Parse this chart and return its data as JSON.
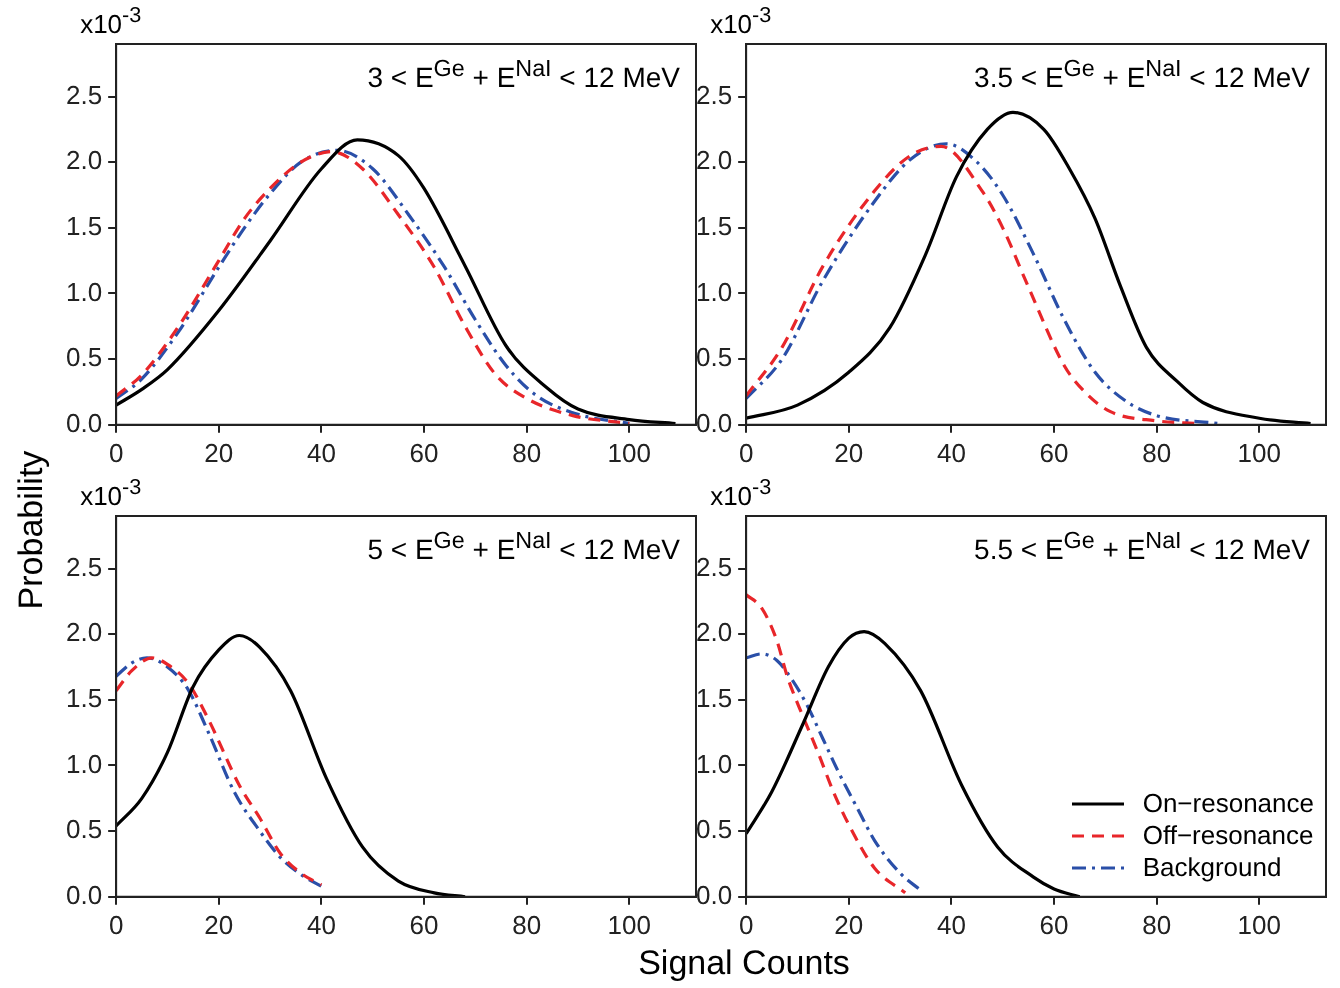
{
  "chart_data": [
    {
      "type": "line",
      "title": "3 < E$^{Ge}$ + E$^{NaI}$ < 12 MeV",
      "ylabel": "Probability",
      "annotations": [
        "x10$^{-3}$"
      ],
      "xlim": [
        0,
        113
      ],
      "ylim": [
        0,
        2.9
      ],
      "xticks": [
        0,
        20,
        40,
        60,
        80,
        100
      ],
      "yticks": [
        {
          "value": 0,
          "label": "0.0"
        },
        0.5,
        {
          "value": 1,
          "label": "1.0"
        },
        1.5,
        {
          "value": 2,
          "label": "2.0"
        },
        2.5
      ],
      "grid": false,
      "legend": false,
      "marker": "none",
      "series": [
        {
          "color": "#000000",
          "line_style": "solid",
          "x": [
            0,
            5,
            10,
            20,
            30,
            40,
            47,
            55,
            60,
            68,
            76,
            84,
            90,
            100,
            109
          ],
          "values": [
            0.15,
            0.27,
            0.42,
            0.87,
            1.4,
            1.95,
            2.17,
            2.05,
            1.8,
            1.21,
            0.6,
            0.28,
            0.12,
            0.04,
            0.01
          ]
        },
        {
          "color": "#e8262a",
          "line_style": "dashed",
          "x": [
            0,
            5,
            12,
            20,
            25,
            30,
            36,
            42,
            48,
            55,
            62,
            68,
            74,
            80,
            89,
            100
          ],
          "values": [
            0.22,
            0.38,
            0.74,
            1.25,
            1.57,
            1.8,
            2.0,
            2.08,
            1.95,
            1.6,
            1.2,
            0.75,
            0.38,
            0.2,
            0.07,
            0.01
          ]
        },
        {
          "color": "#2a4fa8",
          "line_style": "dotted",
          "x": [
            0,
            5,
            12,
            20,
            25,
            30,
            36,
            43,
            50,
            57,
            64,
            70,
            76,
            82,
            90,
            100
          ],
          "values": [
            0.2,
            0.35,
            0.7,
            1.2,
            1.5,
            1.76,
            2.0,
            2.09,
            1.95,
            1.6,
            1.2,
            0.8,
            0.45,
            0.22,
            0.08,
            0.01
          ]
        }
      ]
    },
    {
      "type": "line",
      "title": "3.5 < E$^{Ge}$ + E$^{NaI}$ < 12 MeV",
      "annotations": [
        "x10$^{-3}$"
      ],
      "xlim": [
        0,
        113
      ],
      "ylim": [
        0,
        2.9
      ],
      "xticks": [
        0,
        20,
        40,
        60,
        80,
        100
      ],
      "yticks": [
        {
          "value": 0,
          "label": "0.0"
        },
        0.5,
        {
          "value": 1,
          "label": "1.0"
        },
        1.5,
        {
          "value": 2,
          "label": "2.0"
        },
        2.5
      ],
      "grid": false,
      "legend": false,
      "marker": "none",
      "series": [
        {
          "color": "#000000",
          "line_style": "solid",
          "x": [
            0,
            10,
            20,
            28,
            35,
            41,
            47,
            52,
            58,
            63,
            68,
            73,
            78,
            84,
            89,
            100,
            110
          ],
          "values": [
            0.05,
            0.15,
            0.4,
            0.74,
            1.3,
            1.89,
            2.25,
            2.38,
            2.25,
            1.95,
            1.57,
            1.05,
            0.59,
            0.33,
            0.17,
            0.05,
            0.01
          ]
        },
        {
          "color": "#e8262a",
          "line_style": "dashed",
          "x": [
            0,
            7,
            15,
            25,
            32,
            38,
            46,
            50,
            55,
            62,
            66,
            71,
            80,
            88
          ],
          "values": [
            0.22,
            0.59,
            1.21,
            1.78,
            2.05,
            2.12,
            1.78,
            1.5,
            1.05,
            0.45,
            0.25,
            0.1,
            0.03,
            0.01
          ]
        },
        {
          "color": "#2a4fa8",
          "line_style": "dotted",
          "x": [
            0,
            7,
            15,
            25,
            32,
            39,
            45,
            50,
            56,
            62,
            68,
            74,
            80,
            92
          ],
          "values": [
            0.2,
            0.5,
            1.1,
            1.7,
            2.02,
            2.14,
            2.0,
            1.75,
            1.3,
            0.8,
            0.4,
            0.18,
            0.07,
            0.01
          ]
        }
      ]
    },
    {
      "type": "line",
      "title": "5 < E$^{Ge}$ + E$^{NaI}$ < 12 MeV",
      "xlabel": "Signal Counts",
      "annotations": [
        "x10$^{-3}$"
      ],
      "xlim": [
        0,
        113
      ],
      "ylim": [
        0,
        2.9
      ],
      "xticks": [
        0,
        20,
        40,
        60,
        80,
        100
      ],
      "yticks": [
        {
          "value": 0,
          "label": "0.0"
        },
        0.5,
        {
          "value": 1,
          "label": "1.0"
        },
        1.5,
        {
          "value": 2,
          "label": "2.0"
        },
        2.5
      ],
      "grid": false,
      "legend": false,
      "marker": "none",
      "series": [
        {
          "color": "#000000",
          "line_style": "solid",
          "x": [
            0,
            5,
            10,
            15,
            20,
            24,
            28,
            34,
            41,
            48,
            55,
            62,
            68
          ],
          "values": [
            0.54,
            0.75,
            1.1,
            1.6,
            1.88,
            1.99,
            1.9,
            1.57,
            0.9,
            0.38,
            0.12,
            0.03,
            0.0
          ]
        },
        {
          "color": "#e8262a",
          "line_style": "dashed",
          "x": [
            0,
            3,
            7,
            10,
            14,
            18,
            24,
            28,
            32,
            36,
            40
          ],
          "values": [
            1.57,
            1.72,
            1.82,
            1.77,
            1.63,
            1.35,
            0.85,
            0.6,
            0.33,
            0.18,
            0.09
          ]
        },
        {
          "color": "#2a4fa8",
          "line_style": "dotted",
          "x": [
            0,
            3,
            6,
            10,
            14,
            18,
            23,
            28,
            32,
            36,
            40
          ],
          "values": [
            1.68,
            1.78,
            1.82,
            1.75,
            1.58,
            1.25,
            0.8,
            0.5,
            0.3,
            0.17,
            0.08
          ]
        }
      ]
    },
    {
      "type": "line",
      "title": "5.5 < E$^{Ge}$ + E$^{NaI}$ < 12 MeV",
      "annotations": [
        "x10$^{-3}$"
      ],
      "xlim": [
        0,
        113
      ],
      "ylim": [
        0,
        2.9
      ],
      "xticks": [
        0,
        20,
        40,
        60,
        80,
        100
      ],
      "yticks": [
        {
          "value": 0,
          "label": "0.0"
        },
        0.5,
        {
          "value": 1,
          "label": "1.0"
        },
        1.5,
        {
          "value": 2,
          "label": "2.0"
        },
        2.5
      ],
      "grid": false,
      "legend": "bottom right",
      "marker": "none",
      "series": [
        {
          "name": "On−resonance",
          "color": "#000000",
          "line_style": "solid",
          "x": [
            0,
            5,
            11,
            16,
            20,
            23,
            27,
            34,
            42,
            49,
            56,
            60,
            65
          ],
          "values": [
            0.48,
            0.8,
            1.31,
            1.75,
            1.97,
            2.02,
            1.93,
            1.57,
            0.85,
            0.38,
            0.15,
            0.06,
            0.0
          ]
        },
        {
          "name": "Off−resonance",
          "color": "#e8262a",
          "line_style": "dashed",
          "x": [
            0,
            3,
            6,
            8,
            11,
            14,
            17,
            20,
            25,
            31
          ],
          "values": [
            2.3,
            2.2,
            1.95,
            1.68,
            1.38,
            1.1,
            0.8,
            0.55,
            0.22,
            0.03
          ]
        },
        {
          "name": "Background",
          "color": "#2a4fa8",
          "line_style": "dotted",
          "x": [
            0,
            3,
            6,
            9,
            12,
            15,
            18,
            22,
            25,
            30,
            34
          ],
          "values": [
            1.82,
            1.85,
            1.8,
            1.65,
            1.45,
            1.2,
            0.95,
            0.65,
            0.43,
            0.18,
            0.05
          ]
        }
      ]
    }
  ]
}
